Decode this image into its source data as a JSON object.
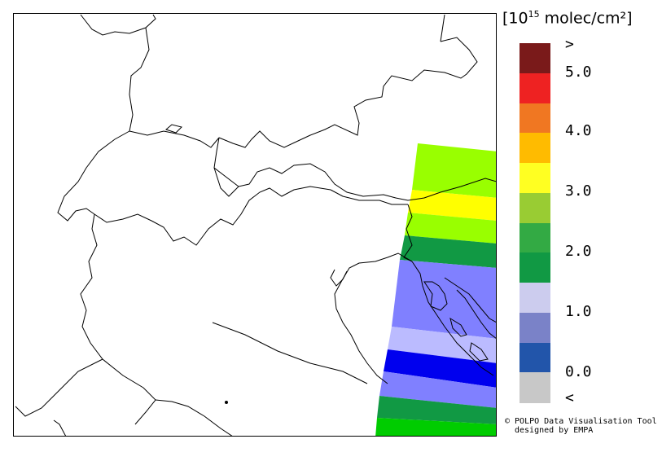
{
  "legend": {
    "unit_prefix": "[10",
    "unit_exponent": "15",
    "unit_suffix": " molec/cm²]",
    "colors": [
      "#7a1a1a",
      "#ee2222",
      "#f07722",
      "#ffbb00",
      "#ffff22",
      "#99cc33",
      "#33aa44",
      "#119944",
      "#ccccee",
      "#7a82c8",
      "#2255aa",
      "#c8c8c8"
    ],
    "tick_labels": [
      ">",
      "5.0",
      "4.0",
      "3.0",
      "2.0",
      "1.0",
      "0.0",
      "<"
    ]
  },
  "overlay": {
    "bands": [
      {
        "color": "#99ff00",
        "value": 2.75
      },
      {
        "color": "#ffff00",
        "value": 3.25
      },
      {
        "color": "#99ff00",
        "value": 2.75
      },
      {
        "color": "#119944",
        "value": 1.75
      },
      {
        "color": "#8080ff",
        "value": 0.75
      },
      {
        "color": "#bbbbff",
        "value": 1.25
      },
      {
        "color": "#0000ee",
        "value": 0.25
      },
      {
        "color": "#8080ff",
        "value": 0.75
      },
      {
        "color": "#119944",
        "value": 1.75
      },
      {
        "color": "#00cc00",
        "value": 2.25
      }
    ]
  },
  "credit": {
    "line1": "© POLPO Data Visualisation Tool",
    "line2": "designed by EMPA"
  }
}
